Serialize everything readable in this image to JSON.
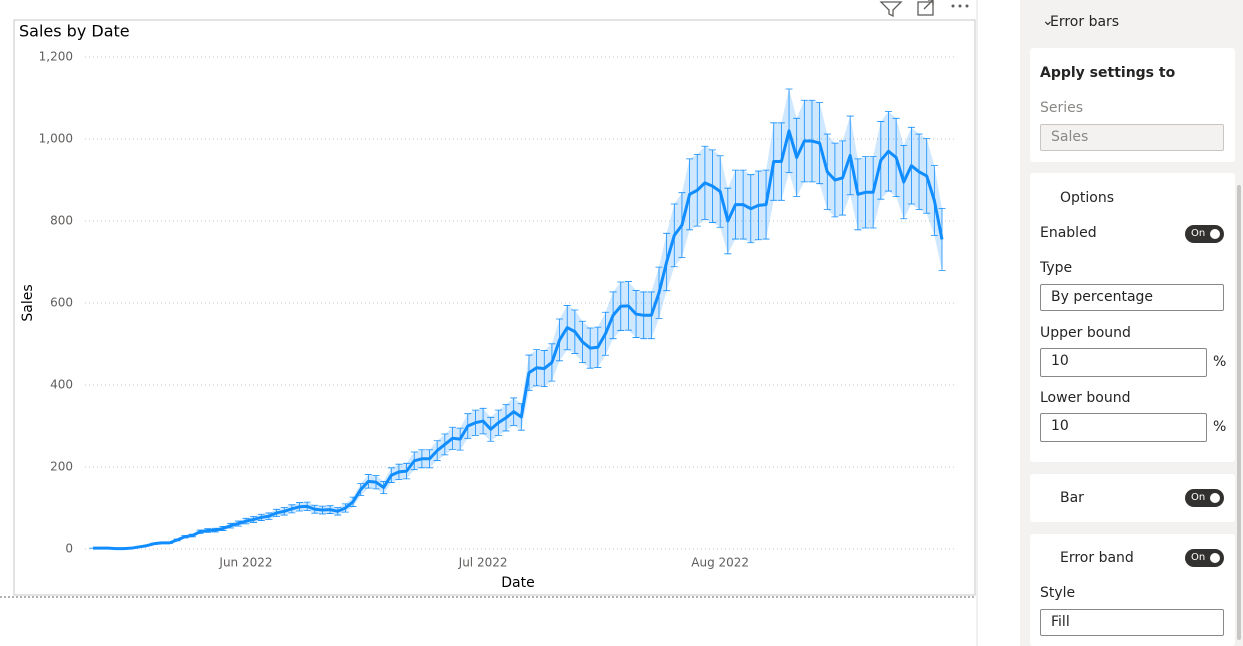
{
  "chart_data": {
    "type": "line",
    "title": "Sales by Date",
    "x_label": "Date",
    "y_label": "Sales",
    "categories": [
      null,
      null,
      null,
      null,
      null,
      null,
      null,
      null,
      null,
      null,
      null,
      null,
      null,
      null,
      null,
      null,
      null,
      null,
      null,
      null,
      "Jun 2022",
      null,
      null,
      null,
      null,
      null,
      null,
      null,
      null,
      null,
      null,
      null,
      null,
      null,
      null,
      null,
      null,
      null,
      null,
      null,
      null,
      null,
      null,
      null,
      null,
      null,
      null,
      null,
      null,
      null,
      null,
      "Jul 2022",
      null,
      null,
      null,
      null,
      null,
      null,
      null,
      null,
      null,
      null,
      null,
      null,
      null,
      null,
      null,
      null,
      null,
      null,
      null,
      null,
      null,
      null,
      null,
      null,
      null,
      null,
      null,
      null,
      null,
      null,
      "Aug 2022",
      null,
      null,
      null,
      null,
      null,
      null,
      null,
      null,
      null,
      null,
      null,
      null,
      null,
      null,
      null,
      null,
      null,
      null,
      null,
      null,
      null,
      null,
      null,
      null,
      null,
      null,
      null,
      null,
      null
    ],
    "series": [
      {
        "name": "Sales",
        "color": "#118dff",
        "values": [
          2,
          2,
          2,
          1,
          1,
          2,
          5,
          8,
          13,
          15,
          15,
          22,
          30,
          33,
          42,
          45,
          46,
          50,
          57,
          62,
          68,
          72,
          77,
          80,
          88,
          92,
          98,
          103,
          104,
          97,
          95,
          96,
          92,
          100,
          115,
          145,
          165,
          163,
          150,
          180,
          188,
          190,
          215,
          220,
          220,
          240,
          255,
          270,
          268,
          300,
          308,
          312,
          292,
          308,
          320,
          335,
          322,
          430,
          442,
          440,
          455,
          510,
          540,
          530,
          505,
          490,
          492,
          525,
          570,
          592,
          593,
          573,
          570,
          570,
          625,
          700,
          765,
          790,
          865,
          875,
          893,
          885,
          872,
          800,
          840,
          840,
          830,
          838,
          840,
          945,
          945,
          1020,
          955,
          995,
          995,
          990,
          920,
          900,
          905,
          960,
          865,
          870,
          870,
          948,
          970,
          955,
          895,
          935,
          920,
          910,
          850,
          755
        ]
      }
    ],
    "ylim": [
      0,
      1200
    ],
    "yticks": [
      0,
      200,
      400,
      600,
      800,
      {
        "value": 1000,
        "label": "1,000"
      },
      {
        "value": 1200,
        "label": "1,200"
      }
    ],
    "grid": true
  },
  "pane": {
    "section": "Error bars",
    "apply": {
      "title": "Apply settings to",
      "series_label": "Series"
    },
    "options": {
      "title": "Options",
      "enabled_label": "Enabled",
      "enabled_state": "On",
      "type_label": "Type",
      "type_value": "By percentage",
      "upper_bound": {
        "label": "Upper bound",
        "value": 10,
        "unit": "%"
      },
      "lower_bound": {
        "label": "Lower bound",
        "value": 10,
        "unit": "%"
      }
    },
    "bar": {
      "title": "Bar",
      "state": "On"
    },
    "error_band": {
      "title": "Error band",
      "state": "On",
      "style_label": "Style",
      "style_value": "Fill"
    }
  }
}
